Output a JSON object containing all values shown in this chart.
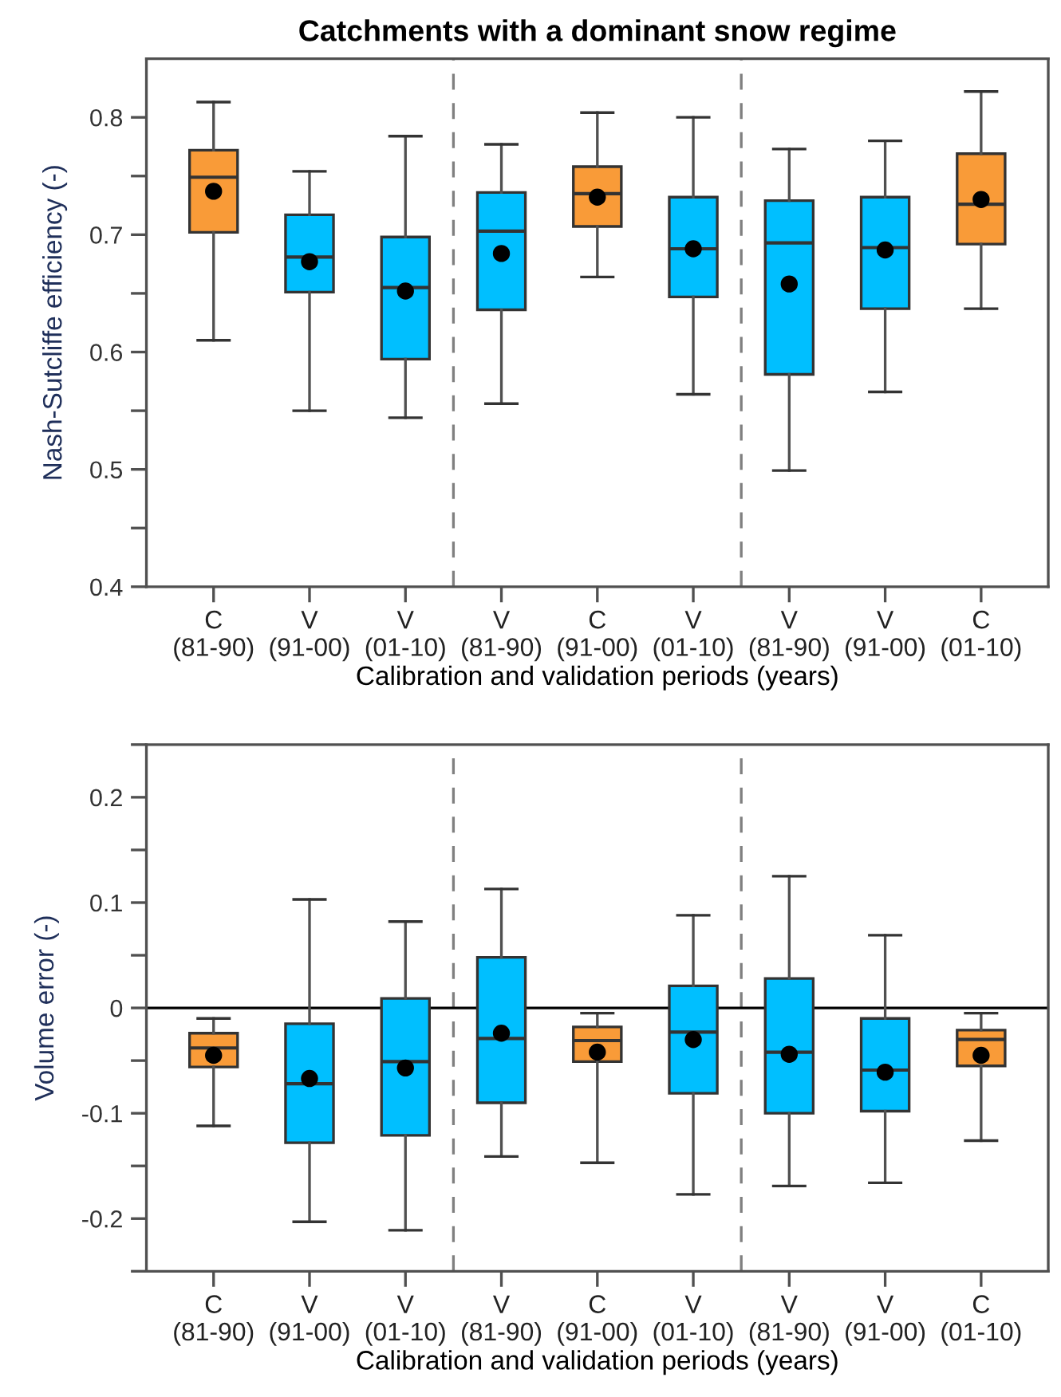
{
  "chart_data": [
    {
      "type": "box",
      "title": "Catchments with a dominant snow regime",
      "xlabel": "Calibration and validation periods (years)",
      "ylabel": "Nash-Sutcliffe efficiency (-)",
      "categories": [
        "C\n(81-90)",
        "V\n(91-00)",
        "V\n(01-10)",
        "V\n(81-90)",
        "C\n(91-00)",
        "V\n(01-10)",
        "V\n(81-90)",
        "V\n(91-00)",
        "C\n(01-10)"
      ],
      "colors": [
        "#f99b38",
        "#00bfff",
        "#00bfff",
        "#00bfff",
        "#f99b38",
        "#00bfff",
        "#00bfff",
        "#00bfff",
        "#f99b38"
      ],
      "boxes": [
        {
          "low": 0.61,
          "q1": 0.702,
          "median": 0.749,
          "q3": 0.772,
          "high": 0.813,
          "mean": 0.737
        },
        {
          "low": 0.55,
          "q1": 0.651,
          "median": 0.681,
          "q3": 0.717,
          "high": 0.754,
          "mean": 0.677
        },
        {
          "low": 0.544,
          "q1": 0.594,
          "median": 0.655,
          "q3": 0.698,
          "high": 0.784,
          "mean": 0.652
        },
        {
          "low": 0.556,
          "q1": 0.636,
          "median": 0.703,
          "q3": 0.736,
          "high": 0.777,
          "mean": 0.684
        },
        {
          "low": 0.664,
          "q1": 0.707,
          "median": 0.735,
          "q3": 0.758,
          "high": 0.804,
          "mean": 0.732
        },
        {
          "low": 0.564,
          "q1": 0.647,
          "median": 0.688,
          "q3": 0.732,
          "high": 0.8,
          "mean": 0.688
        },
        {
          "low": 0.499,
          "q1": 0.581,
          "median": 0.693,
          "q3": 0.729,
          "high": 0.773,
          "mean": 0.658
        },
        {
          "low": 0.566,
          "q1": 0.637,
          "median": 0.689,
          "q3": 0.732,
          "high": 0.78,
          "mean": 0.687
        },
        {
          "low": 0.637,
          "q1": 0.692,
          "median": 0.726,
          "q3": 0.769,
          "high": 0.822,
          "mean": 0.73
        }
      ],
      "ylim": [
        0.4,
        0.85
      ],
      "yticks": [
        0.4,
        {
          "value": 0.45,
          "label": null
        },
        0.5,
        {
          "value": 0.55,
          "label": null
        },
        0.6,
        {
          "value": 0.65,
          "label": null
        },
        0.7,
        {
          "value": 0.75,
          "label": null
        },
        0.8
      ],
      "grid": false
    },
    {
      "type": "box",
      "xlabel": "Calibration and validation periods (years)",
      "ylabel": "Volume error (-)",
      "categories": [
        "C\n(81-90)",
        "V\n(91-00)",
        "V\n(01-10)",
        "V\n(81-90)",
        "C\n(91-00)",
        "V\n(01-10)",
        "V\n(81-90)",
        "V\n(91-00)",
        "C\n(01-10)"
      ],
      "colors": [
        "#f99b38",
        "#00bfff",
        "#00bfff",
        "#00bfff",
        "#f99b38",
        "#00bfff",
        "#00bfff",
        "#00bfff",
        "#f99b38"
      ],
      "boxes": [
        {
          "low": -0.112,
          "q1": -0.056,
          "median": -0.038,
          "q3": -0.024,
          "high": -0.01,
          "mean": -0.045
        },
        {
          "low": -0.203,
          "q1": -0.128,
          "median": -0.072,
          "q3": -0.015,
          "high": 0.103,
          "mean": -0.067
        },
        {
          "low": -0.211,
          "q1": -0.121,
          "median": -0.051,
          "q3": 0.009,
          "high": 0.082,
          "mean": -0.057
        },
        {
          "low": -0.141,
          "q1": -0.09,
          "median": -0.029,
          "q3": 0.048,
          "high": 0.113,
          "mean": -0.024
        },
        {
          "low": -0.147,
          "q1": -0.051,
          "median": -0.031,
          "q3": -0.018,
          "high": -0.005,
          "mean": -0.042
        },
        {
          "low": -0.177,
          "q1": -0.081,
          "median": -0.023,
          "q3": 0.021,
          "high": 0.088,
          "mean": -0.03
        },
        {
          "low": -0.169,
          "q1": -0.1,
          "median": -0.042,
          "q3": 0.028,
          "high": 0.125,
          "mean": -0.044
        },
        {
          "low": -0.166,
          "q1": -0.098,
          "median": -0.059,
          "q3": -0.01,
          "high": 0.069,
          "mean": -0.061
        },
        {
          "low": -0.126,
          "q1": -0.055,
          "median": -0.03,
          "q3": -0.021,
          "high": -0.005,
          "mean": -0.045
        }
      ],
      "ylim": [
        -0.25,
        0.25
      ],
      "yticks": [
        {
          "value": -0.25,
          "label": null
        },
        -0.2,
        {
          "value": -0.15,
          "label": null
        },
        -0.1,
        {
          "value": -0.05,
          "label": null
        },
        0,
        {
          "value": 0.05,
          "label": null
        },
        0.1,
        {
          "value": 0.15,
          "label": null
        },
        0.2,
        {
          "value": 0.25,
          "label": null
        }
      ],
      "ref_lines": [
        {
          "axis": "y",
          "value": 0,
          "line_style": "solid",
          "color": "#000000"
        }
      ],
      "grid": false
    }
  ]
}
